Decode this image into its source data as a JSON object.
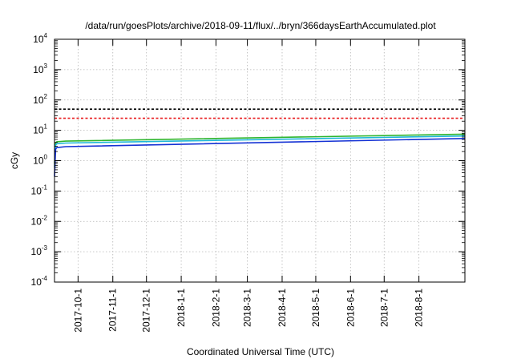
{
  "chart_data": {
    "type": "line",
    "title": "/data/run/goesPlots/archive/2018-09-11/flux/../bryn/366daysEarthAccumulated.plot",
    "xlabel": "Coordinated Universal Time (UTC)",
    "ylabel": "cGy",
    "y_scale": "log",
    "ylim_exponents": [
      -4,
      4
    ],
    "y_tick_exponents": [
      -4,
      -3,
      -2,
      -1,
      0,
      1,
      2,
      3,
      4
    ],
    "x_range": [
      "2017-09-10",
      "2018-09-11"
    ],
    "x_ticks": [
      "2017-10-1",
      "2017-11-1",
      "2017-12-1",
      "2018-1-1",
      "2018-2-1",
      "2018-3-1",
      "2018-4-1",
      "2018-5-1",
      "2018-6-1",
      "2018-7-1",
      "2018-8-1"
    ],
    "grid": true,
    "reference_lines": [
      {
        "value": 50,
        "color": "#000000",
        "style": "dashed"
      },
      {
        "value": 25,
        "color": "#e8191b",
        "style": "dashed"
      }
    ],
    "series": [
      {
        "color": "#2fb52f",
        "points": [
          [
            "2017-09-10",
            0.8
          ],
          [
            "2017-09-11",
            3.8
          ],
          [
            "2017-09-12",
            4.2
          ],
          [
            "2017-09-20",
            4.4
          ],
          [
            "2018-09-11",
            7.5
          ]
        ]
      },
      {
        "color": "#1fb7d8",
        "points": [
          [
            "2017-09-10",
            0.6
          ],
          [
            "2017-09-11",
            3.3
          ],
          [
            "2017-09-12",
            3.6
          ],
          [
            "2017-09-20",
            3.8
          ],
          [
            "2018-09-11",
            6.5
          ]
        ]
      },
      {
        "color": "#1431d4",
        "points": [
          [
            "2017-09-10",
            0.3
          ],
          [
            "2017-09-11",
            2.4
          ],
          [
            "2017-09-12",
            2.7
          ],
          [
            "2017-09-20",
            2.9
          ],
          [
            "2018-09-11",
            5.4
          ]
        ]
      }
    ]
  }
}
